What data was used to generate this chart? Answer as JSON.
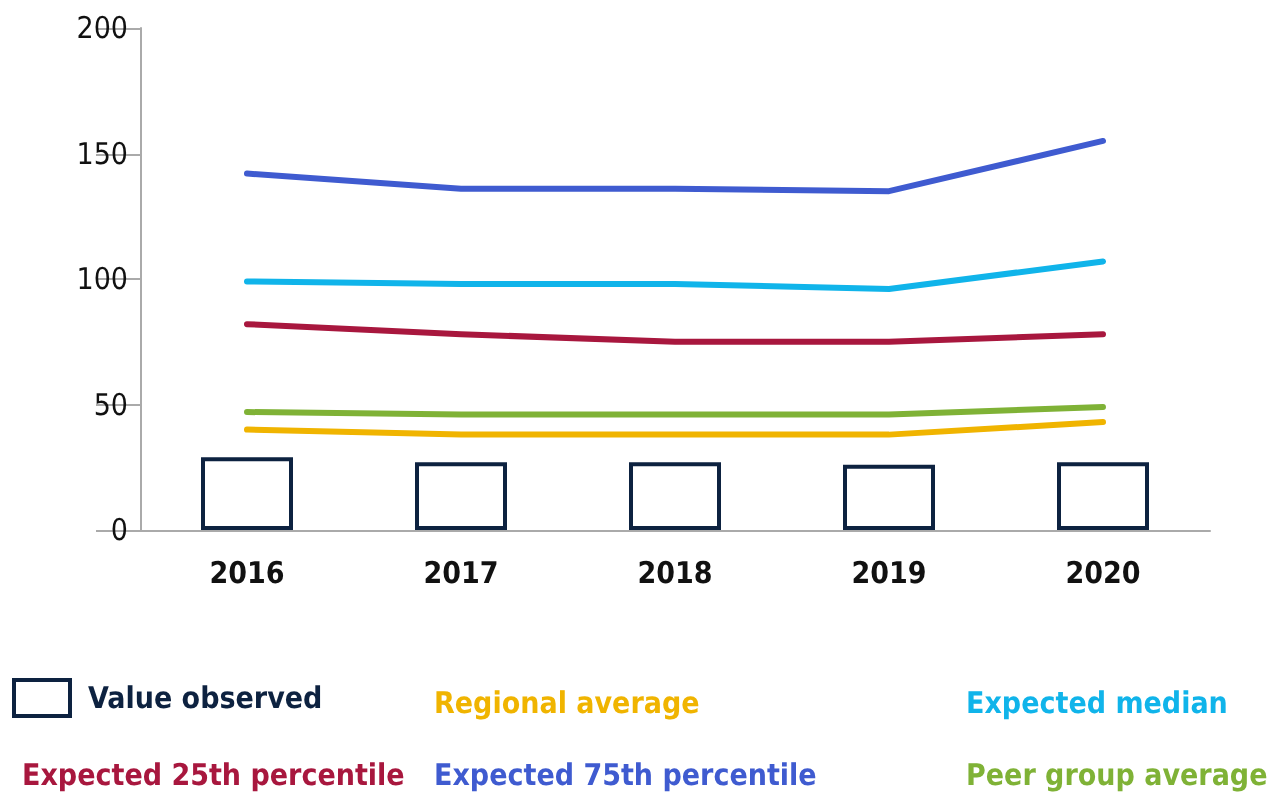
{
  "chart_data": {
    "type": "line",
    "categories": [
      "2016",
      "2017",
      "2018",
      "2019",
      "2020"
    ],
    "series": [
      {
        "name": "Value observed",
        "type": "bar",
        "color": "#0d2240",
        "values": [
          29,
          27,
          27,
          26,
          27
        ]
      },
      {
        "name": "Regional average",
        "color": "#f0b400",
        "values": [
          40,
          38,
          38,
          38,
          43
        ]
      },
      {
        "name": "Expected median",
        "color": "#10b4ea",
        "values": [
          99,
          98,
          98,
          96,
          107
        ]
      },
      {
        "name": "Expected 25th percentile",
        "color": "#a8173e",
        "values": [
          82,
          78,
          75,
          75,
          78
        ]
      },
      {
        "name": "Expected 75th percentile",
        "color": "#3f5bd0",
        "values": [
          142,
          136,
          136,
          135,
          155
        ]
      },
      {
        "name": "Peer group average",
        "color": "#7fb236",
        "values": [
          47,
          46,
          46,
          46,
          49
        ]
      }
    ],
    "ylim": [
      0,
      200
    ],
    "yticks": [
      0,
      50,
      100,
      150,
      200
    ],
    "grid": false,
    "legend": "bottom",
    "marker": "none",
    "line_style": "solid"
  }
}
